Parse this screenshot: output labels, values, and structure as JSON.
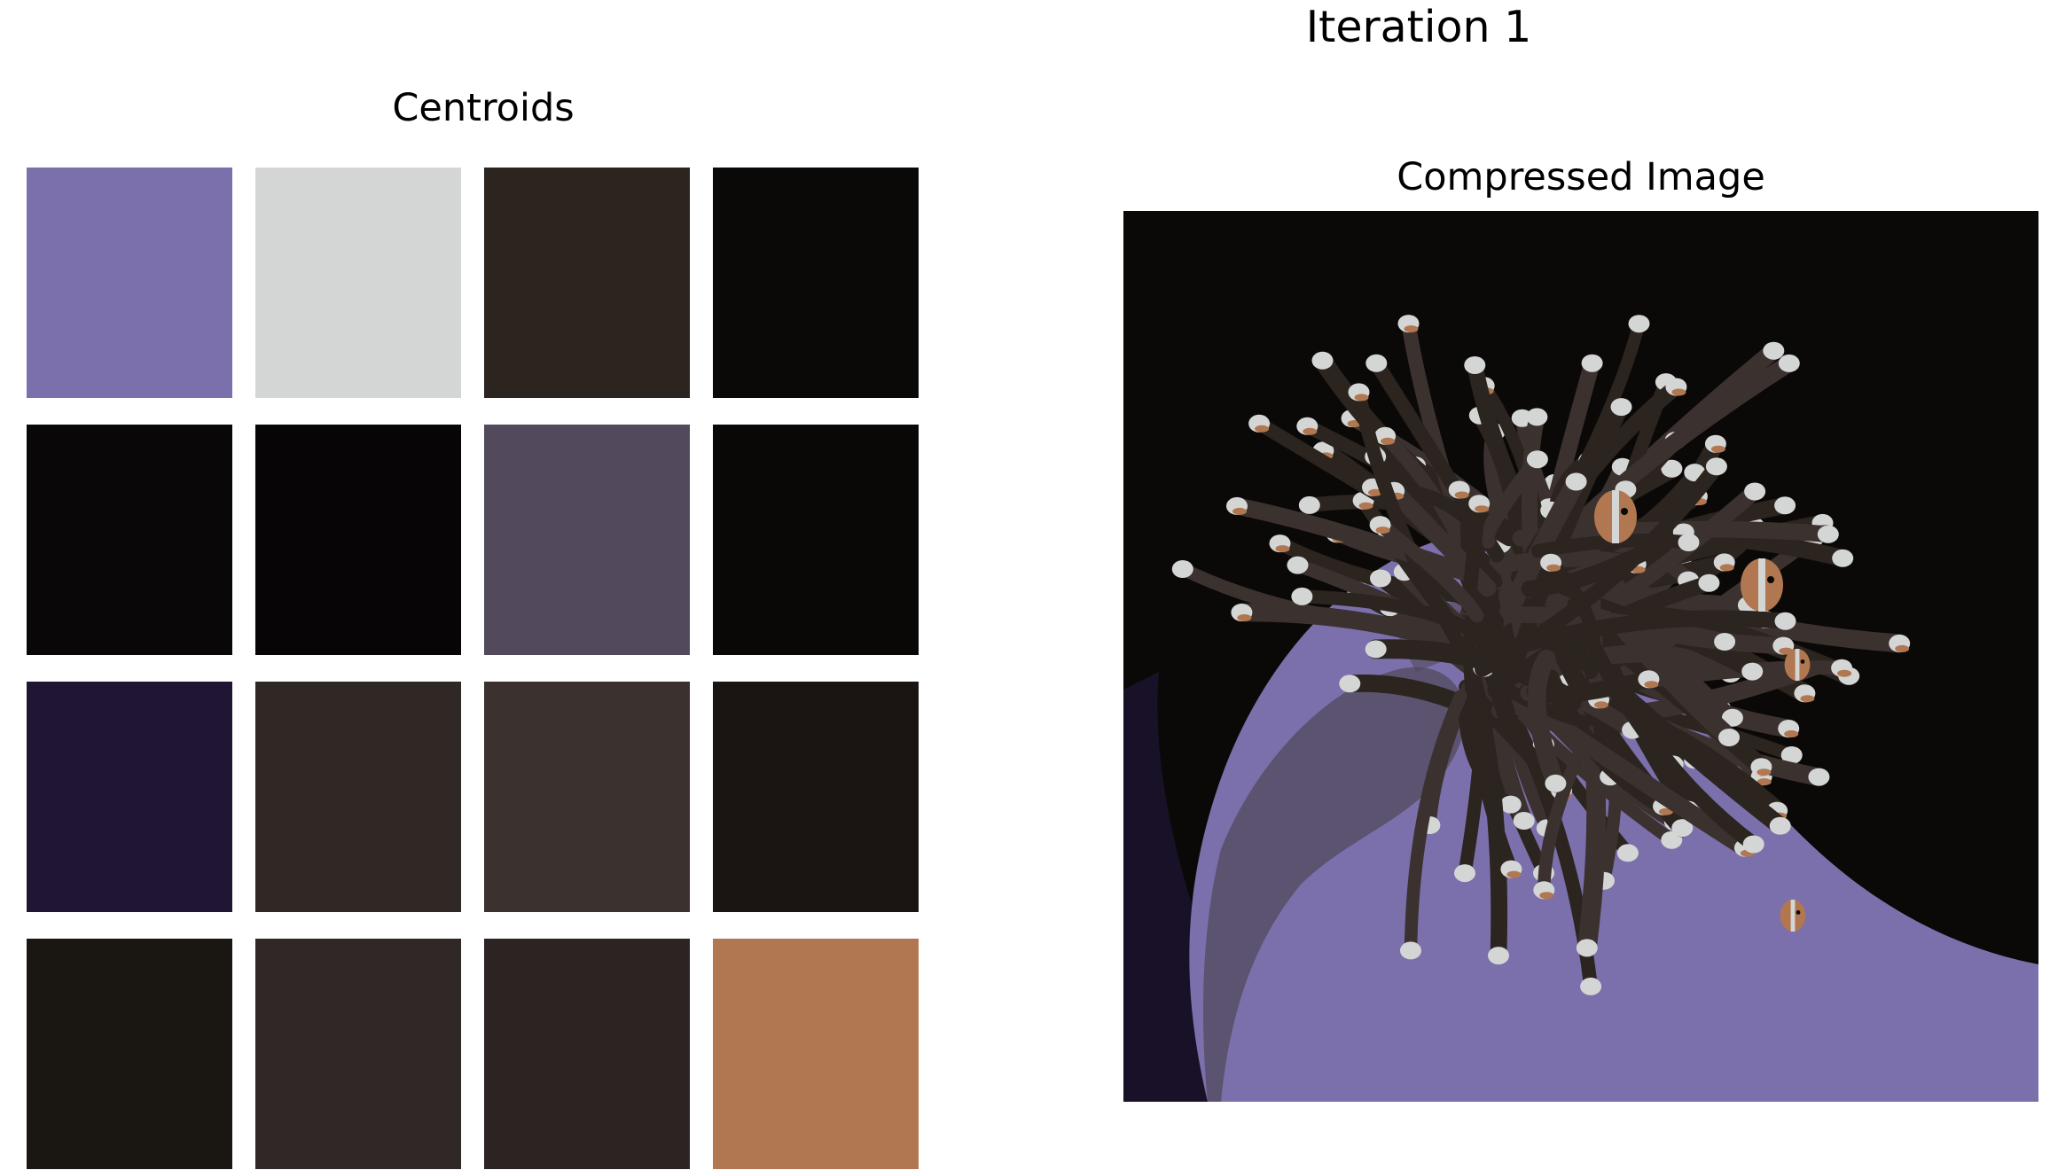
{
  "figure": {
    "suptitle": "Iteration 1"
  },
  "centroids": {
    "title": "Centroids",
    "swatches": [
      {
        "color": "#7b70ab"
      },
      {
        "color": "#d4d6d5"
      },
      {
        "color": "#2b241f"
      },
      {
        "color": "#0b0907"
      },
      {
        "color": "#090707"
      },
      {
        "color": "#070505"
      },
      {
        "color": "#524a5c"
      },
      {
        "color": "#0a0707"
      },
      {
        "color": "#201634"
      },
      {
        "color": "#2f2825"
      },
      {
        "color": "#3b3230"
      },
      {
        "color": "#1a1513"
      },
      {
        "color": "#1a1612"
      },
      {
        "color": "#2f2826"
      },
      {
        "color": "#2b2423"
      },
      {
        "color": "#b07750"
      }
    ]
  },
  "compressed": {
    "title": "Compressed Image",
    "palette": {
      "background": "#0b0907",
      "body": "#7b70ab",
      "body_shadow": "#524a5c",
      "tentacle": "#3b3230",
      "tentacle_dark": "#2b241f",
      "tip": "#d4d6d5",
      "fish": "#b07750",
      "deep": "#201634"
    }
  }
}
